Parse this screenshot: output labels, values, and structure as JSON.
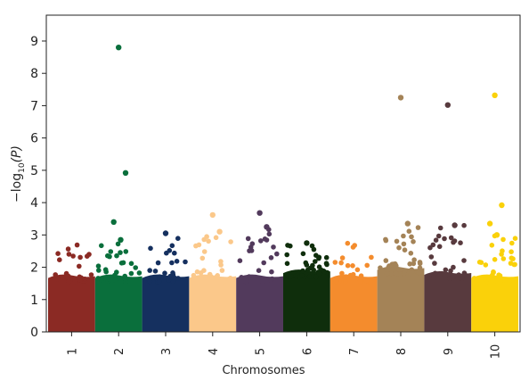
{
  "chart_data": {
    "type": "scatter",
    "title": "",
    "xlabel": "Chromosomes",
    "ylabel_prefix": "−log",
    "ylabel_sub": "10",
    "ylabel_suffix": "(P)",
    "ylim": [
      0,
      9.8
    ],
    "yticks": [
      0,
      1,
      2,
      3,
      4,
      5,
      6,
      7,
      8,
      9
    ],
    "grid": false,
    "legend": "none",
    "chromosomes": [
      {
        "label": "1",
        "color": "#8b2a24",
        "body_top": 1.75,
        "spread_max": 2.7,
        "tail_count": 30,
        "highlights": []
      },
      {
        "label": "2",
        "color": "#0a6f3c",
        "body_top": 1.75,
        "spread_max": 2.85,
        "tail_count": 28,
        "highlights": [
          8.8,
          4.92,
          3.4,
          2.85
        ]
      },
      {
        "label": "3",
        "color": "#15305f",
        "body_top": 1.75,
        "spread_max": 2.9,
        "tail_count": 26,
        "highlights": [
          3.05
        ]
      },
      {
        "label": "4",
        "color": "#fbc88a",
        "body_top": 1.75,
        "spread_max": 3.0,
        "tail_count": 28,
        "highlights": [
          3.62,
          3.1
        ]
      },
      {
        "label": "5",
        "color": "#523a5c",
        "body_top": 1.75,
        "spread_max": 3.2,
        "tail_count": 26,
        "highlights": [
          3.68,
          3.25
        ]
      },
      {
        "label": "6",
        "color": "#0f2e0c",
        "body_top": 1.9,
        "spread_max": 2.7,
        "tail_count": 40,
        "highlights": [
          2.75
        ]
      },
      {
        "label": "7",
        "color": "#f48c2d",
        "body_top": 1.75,
        "spread_max": 2.85,
        "tail_count": 30,
        "highlights": []
      },
      {
        "label": "8",
        "color": "#a48357",
        "body_top": 2.0,
        "spread_max": 3.35,
        "tail_count": 40,
        "highlights": [
          7.25,
          3.35
        ]
      },
      {
        "label": "9",
        "color": "#583a3e",
        "body_top": 1.85,
        "spread_max": 3.3,
        "tail_count": 34,
        "highlights": [
          7.02,
          3.3
        ]
      },
      {
        "label": "10",
        "color": "#fad10a",
        "body_top": 1.75,
        "spread_max": 3.0,
        "tail_count": 32,
        "highlights": [
          7.32,
          3.92,
          3.35,
          3.0
        ]
      }
    ]
  }
}
